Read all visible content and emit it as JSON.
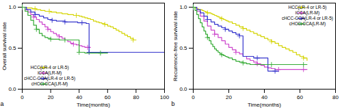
{
  "chart_data": [
    {
      "type": "step",
      "xlabel": "Time(months)",
      "ylabel": "Overall survival rate",
      "xlim": [
        0,
        100
      ],
      "ylim": [
        0,
        1.05
      ],
      "xticks": [
        0,
        20,
        40,
        60,
        80,
        100
      ],
      "yticks": [
        {
          "value": 0,
          "label": "0.0"
        },
        {
          "value": 0.5,
          "label": "0.5"
        },
        {
          "value": 1,
          "label": "1.0"
        }
      ],
      "legend": "lower left",
      "annotations": [
        "a"
      ],
      "series": [
        {
          "name": "HCC(LR-4 or LR-5)",
          "color": "#d4d400",
          "marker": "plus",
          "x": [
            0,
            1,
            2,
            3,
            4,
            5,
            6,
            7,
            8,
            9,
            10,
            11,
            12,
            13,
            14,
            15,
            16,
            17,
            18,
            19,
            20,
            22,
            24,
            26,
            28,
            30,
            32,
            34,
            36,
            38,
            40,
            42,
            44,
            46,
            48,
            50,
            52,
            54,
            56,
            58,
            60,
            62,
            64,
            66,
            68,
            70,
            72,
            74,
            76,
            78,
            80
          ],
          "values": [
            1.0,
            1.0,
            1.0,
            0.99,
            0.99,
            0.99,
            0.99,
            0.98,
            0.98,
            0.98,
            0.97,
            0.97,
            0.97,
            0.96,
            0.96,
            0.96,
            0.95,
            0.95,
            0.95,
            0.95,
            0.94,
            0.94,
            0.93,
            0.93,
            0.92,
            0.92,
            0.91,
            0.91,
            0.9,
            0.9,
            0.89,
            0.88,
            0.87,
            0.86,
            0.85,
            0.83,
            0.82,
            0.81,
            0.8,
            0.79,
            0.77,
            0.76,
            0.74,
            0.72,
            0.7,
            0.68,
            0.66,
            0.64,
            0.62,
            0.6,
            0.6
          ]
        },
        {
          "name": "iCCA(LR-M)",
          "color": "#cc44cc",
          "marker": "plus",
          "x": [
            0,
            2,
            4,
            6,
            8,
            10,
            12,
            14,
            16,
            18,
            20,
            22,
            24,
            26,
            28,
            30,
            32,
            34,
            36,
            38,
            40,
            42,
            44,
            46,
            48
          ],
          "values": [
            1.0,
            0.97,
            0.94,
            0.91,
            0.88,
            0.85,
            0.82,
            0.79,
            0.76,
            0.73,
            0.7,
            0.68,
            0.66,
            0.64,
            0.62,
            0.6,
            0.58,
            0.56,
            0.55,
            0.54,
            0.53,
            0.52,
            0.51,
            0.51,
            0.51
          ]
        },
        {
          "name": "cHCC-CCA(LR-4 or LR-5)",
          "color": "#3333cc",
          "marker": "plus",
          "x": [
            0,
            3,
            6,
            9,
            12,
            15,
            18,
            21,
            24,
            27,
            30,
            33,
            36,
            39,
            42,
            45,
            46,
            46.5,
            47,
            100
          ],
          "values": [
            1.0,
            0.97,
            0.94,
            0.91,
            0.89,
            0.87,
            0.85,
            0.84,
            0.83,
            0.83,
            0.82,
            0.82,
            0.82,
            0.81,
            0.81,
            0.8,
            0.8,
            0.8,
            0.45,
            0.45
          ]
        },
        {
          "name": "cHCC-CCA(LR-M)",
          "color": "#33aa33",
          "marker": "plus",
          "x": [
            0,
            2,
            4,
            6,
            8,
            10,
            12,
            14,
            16,
            18,
            20,
            22,
            24,
            26,
            28,
            30,
            32,
            34,
            36,
            38,
            40,
            42,
            44,
            46,
            48,
            50,
            55,
            60
          ],
          "values": [
            1.0,
            0.95,
            0.9,
            0.84,
            0.78,
            0.73,
            0.68,
            0.65,
            0.63,
            0.62,
            0.61,
            0.61,
            0.61,
            0.6,
            0.6,
            0.6,
            0.6,
            0.6,
            0.6,
            0.6,
            0.45,
            0.45,
            0.44,
            0.44,
            0.44,
            0.44,
            0.44,
            0.44
          ]
        }
      ]
    },
    {
      "type": "step",
      "xlabel": "Time(months)",
      "ylabel": "Recurrence-free survival rate",
      "xlim": [
        0,
        80
      ],
      "ylim": [
        0,
        1.05
      ],
      "xticks": [
        0,
        20,
        40,
        60,
        80
      ],
      "yticks": [
        {
          "value": 0,
          "label": "0.0"
        },
        {
          "value": 0.5,
          "label": "0.5"
        },
        {
          "value": 1,
          "label": "1.0"
        }
      ],
      "legend": "upper right",
      "annotations": [
        "b"
      ],
      "series": [
        {
          "name": "HCC(LR-4 or LR-5)",
          "color": "#d4d400",
          "marker": "plus",
          "x": [
            0,
            1,
            2,
            3,
            4,
            5,
            6,
            7,
            8,
            9,
            10,
            11,
            12,
            13,
            14,
            15,
            16,
            17,
            18,
            19,
            20,
            22,
            24,
            26,
            28,
            30,
            32,
            34,
            36,
            38,
            40,
            42,
            44,
            46,
            48,
            50,
            52,
            54,
            56,
            58,
            60,
            62,
            64
          ],
          "values": [
            1.0,
            0.99,
            0.98,
            0.97,
            0.97,
            0.96,
            0.95,
            0.94,
            0.93,
            0.93,
            0.92,
            0.91,
            0.9,
            0.89,
            0.88,
            0.87,
            0.86,
            0.85,
            0.84,
            0.83,
            0.82,
            0.8,
            0.78,
            0.76,
            0.74,
            0.72,
            0.7,
            0.68,
            0.66,
            0.64,
            0.62,
            0.6,
            0.58,
            0.56,
            0.53,
            0.51,
            0.49,
            0.47,
            0.45,
            0.42,
            0.4,
            0.38,
            0.35
          ]
        },
        {
          "name": "iCCA(LR-M)",
          "color": "#cc44cc",
          "marker": "plus",
          "x": [
            0,
            2,
            4,
            6,
            8,
            10,
            12,
            14,
            16,
            18,
            20,
            22,
            24,
            26,
            28,
            30,
            32,
            34,
            36,
            38,
            40,
            42,
            44,
            46,
            48,
            50,
            52,
            54,
            56,
            58,
            60,
            62,
            64
          ],
          "values": [
            1.0,
            0.95,
            0.89,
            0.83,
            0.77,
            0.72,
            0.67,
            0.63,
            0.59,
            0.55,
            0.51,
            0.48,
            0.45,
            0.43,
            0.4,
            0.37,
            0.35,
            0.33,
            0.31,
            0.29,
            0.27,
            0.26,
            0.25,
            0.24,
            0.24,
            0.24,
            0.24,
            0.24,
            0.24,
            0.24,
            0.24,
            0.24,
            0.24
          ]
        },
        {
          "name": "cHCC-CCA(LR-4 or LR-5)",
          "color": "#3333cc",
          "marker": "plus",
          "x": [
            0,
            2,
            4,
            6,
            8,
            10,
            12,
            14,
            16,
            18,
            20,
            22,
            24,
            26,
            28,
            30,
            32,
            34,
            36,
            38,
            40,
            42,
            44,
            46,
            48
          ],
          "values": [
            1.0,
            0.97,
            0.93,
            0.89,
            0.85,
            0.82,
            0.79,
            0.77,
            0.75,
            0.73,
            0.71,
            0.69,
            0.67,
            0.65,
            0.4,
            0.4,
            0.4,
            0.38,
            0.38,
            0.38,
            0.38,
            0.22,
            0.22,
            0.22,
            0.22
          ]
        },
        {
          "name": "cHCC-CCA(LR-M)",
          "color": "#33aa33",
          "marker": "plus",
          "x": [
            0,
            1,
            2,
            3,
            4,
            5,
            6,
            7,
            8,
            9,
            10,
            11,
            12,
            13,
            14,
            15,
            16,
            17,
            18,
            19,
            20,
            22,
            24,
            26,
            28,
            30,
            32,
            34,
            36,
            38,
            40,
            42,
            44,
            46,
            48,
            50,
            52,
            54,
            56,
            58,
            60,
            62,
            64
          ],
          "values": [
            1.0,
            0.96,
            0.91,
            0.86,
            0.81,
            0.76,
            0.71,
            0.67,
            0.63,
            0.59,
            0.55,
            0.52,
            0.49,
            0.47,
            0.45,
            0.43,
            0.42,
            0.41,
            0.4,
            0.39,
            0.38,
            0.36,
            0.34,
            0.33,
            0.32,
            0.31,
            0.3,
            0.3,
            0.3,
            0.3,
            0.3,
            0.3,
            0.3,
            0.3,
            0.3,
            0.3,
            0.3,
            0.3,
            0.3,
            0.3,
            0.3,
            0.3,
            0.3
          ]
        }
      ]
    }
  ]
}
